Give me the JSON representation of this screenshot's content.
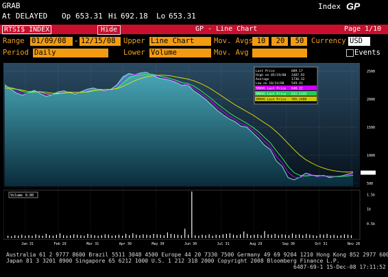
{
  "header": {
    "ticker": "GRAB",
    "status": "At DELAYED",
    "open_label": "Op",
    "open": "653.31",
    "high_label": "Hi",
    "high": "692.18",
    "low_label": "Lo",
    "low": "653.31",
    "index_label": "Index",
    "brand": "GP"
  },
  "toolbar": {
    "security": "RTSI$ INDEX",
    "hide": "Hide",
    "title": "GP - Line Chart",
    "page": "Page 1/10"
  },
  "controls": {
    "range_label": "Range",
    "range_from": "01/09/08",
    "range_to": "12/15/08",
    "upper_label": "Upper",
    "upper_value": "Line Chart",
    "movavgs_label": "Mov. Avgs",
    "ma1": "10",
    "ma2": "20",
    "ma3": "50",
    "currency_label": "Currency",
    "currency_value": "USD",
    "period_label": "Period",
    "period_value": "Daily",
    "lower_label": "Lower",
    "lower_value": "Volume",
    "movavg_label": "Mov. Avg",
    "movavg_value": "",
    "events_label": "Events"
  },
  "legend": {
    "last_price_label": "Last Price",
    "last_price": "689.17",
    "high_label": "High on 05/19/08",
    "high": "2487.92",
    "average_label": "Average",
    "average": "1736.32",
    "low_label": "Low on 10/24/08",
    "low": "549.43",
    "sma1_label": "SMAVG Last Price",
    "sma1": "640.22",
    "sma2_label": "SMAVG Last Price",
    "sma2": "632.1145",
    "sma3_label": "SMAVG Last Price",
    "sma3": "705.2480",
    "volume_label": "Volume",
    "volume": "0.00"
  },
  "chart_data": {
    "type": "line",
    "title": "",
    "x_ticks": [
      "Jan 31",
      "Feb 29",
      "Mar 31",
      "Apr 30",
      "May 30",
      "Jun 30",
      "Jul 31",
      "Aug 29",
      "Sep 30",
      "Oct 31",
      "Nov 28"
    ],
    "y_ticks": [
      500,
      1000,
      1500,
      2000,
      2500
    ],
    "ylim": [
      450,
      2600
    ],
    "y2_ticks": [
      "0.5b",
      "1b",
      "1.5b"
    ],
    "series": [
      {
        "name": "Last Price",
        "color": "#8ad8e8",
        "values": [
          2260,
          2180,
          2110,
          2070,
          2120,
          2160,
          2100,
          2050,
          2080,
          2130,
          2150,
          2120,
          2090,
          2140,
          2180,
          2200,
          2170,
          2150,
          2180,
          2260,
          2400,
          2460,
          2440,
          2470,
          2480,
          2430,
          2380,
          2360,
          2340,
          2300,
          2250,
          2260,
          2150,
          2080,
          2000,
          1900,
          1800,
          1720,
          1650,
          1600,
          1520,
          1500,
          1400,
          1300,
          1180,
          1100,
          900,
          800,
          600,
          560,
          610,
          680,
          650,
          620,
          640,
          600,
          620,
          630,
          660,
          689
        ]
      },
      {
        "name": "SMAVG Last Price",
        "color": "#cc00ff",
        "values": [
          2240,
          2200,
          2150,
          2100,
          2100,
          2140,
          2120,
          2080,
          2080,
          2100,
          2130,
          2130,
          2110,
          2120,
          2150,
          2180,
          2180,
          2160,
          2170,
          2220,
          2330,
          2420,
          2440,
          2450,
          2460,
          2440,
          2400,
          2380,
          2350,
          2320,
          2280,
          2260,
          2200,
          2120,
          2040,
          1960,
          1860,
          1780,
          1700,
          1640,
          1570,
          1530,
          1450,
          1360,
          1250,
          1150,
          980,
          860,
          700,
          610,
          600,
          640,
          650,
          630,
          630,
          615,
          615,
          625,
          645,
          660
        ]
      },
      {
        "name": "SMAVG Last Price",
        "color": "#33ff66",
        "values": [
          2230,
          2210,
          2180,
          2140,
          2110,
          2130,
          2130,
          2100,
          2085,
          2095,
          2120,
          2130,
          2120,
          2120,
          2140,
          2170,
          2180,
          2170,
          2170,
          2200,
          2280,
          2370,
          2420,
          2440,
          2450,
          2450,
          2420,
          2400,
          2370,
          2340,
          2300,
          2280,
          2240,
          2170,
          2090,
          2010,
          1920,
          1840,
          1760,
          1690,
          1630,
          1570,
          1500,
          1420,
          1320,
          1220,
          1080,
          950,
          800,
          690,
          640,
          630,
          640,
          640,
          635,
          625,
          620,
          620,
          630,
          640
        ]
      },
      {
        "name": "SMAVG Last Price",
        "color": "#e8e800",
        "values": [
          2200,
          2190,
          2180,
          2160,
          2140,
          2135,
          2135,
          2125,
          2110,
          2105,
          2110,
          2120,
          2125,
          2125,
          2130,
          2150,
          2165,
          2175,
          2180,
          2190,
          2230,
          2280,
          2330,
          2370,
          2400,
          2420,
          2430,
          2430,
          2420,
          2400,
          2380,
          2360,
          2330,
          2290,
          2240,
          2180,
          2110,
          2040,
          1970,
          1900,
          1840,
          1780,
          1720,
          1650,
          1580,
          1510,
          1420,
          1320,
          1210,
          1100,
          1000,
          920,
          860,
          810,
          770,
          740,
          720,
          705,
          700,
          705
        ]
      }
    ],
    "volume": [
      5,
      4,
      6,
      5,
      7,
      5,
      6,
      5,
      8,
      6,
      5,
      9,
      6,
      5,
      7,
      10,
      6,
      5,
      6,
      8,
      7,
      6,
      5,
      9,
      7,
      6,
      5,
      6,
      8,
      7,
      5,
      6,
      7,
      5,
      9,
      6,
      10,
      7,
      6,
      8,
      7,
      6,
      9,
      8,
      7,
      6,
      12,
      9,
      8,
      7,
      6,
      20,
      7,
      100,
      6,
      5,
      7,
      6,
      8,
      5,
      7,
      6,
      8,
      9,
      10,
      7,
      6,
      8,
      14,
      9,
      6,
      7,
      8,
      6,
      15,
      8,
      7,
      9,
      6,
      8,
      7,
      6,
      10,
      7,
      8,
      6,
      9,
      7,
      6,
      5,
      8,
      7,
      9,
      6,
      7,
      5,
      6,
      8,
      7,
      6
    ]
  },
  "footer": {
    "line1": "Australia 61 2 9777 8600 Brazil 5511 3048 4500 Europe 44 20 7330 7500 Germany 49 69 9204 1210 Hong Kong 852 2977 6000",
    "line2": "Japan 81 3 3201 8900       Singapore 65 6212 1000       U.S. 1 212 318 2000       Copyright 2008 Bloomberg Finance L.P.",
    "line3": "6487-69-1 15-Dec-08 17:11:52"
  }
}
